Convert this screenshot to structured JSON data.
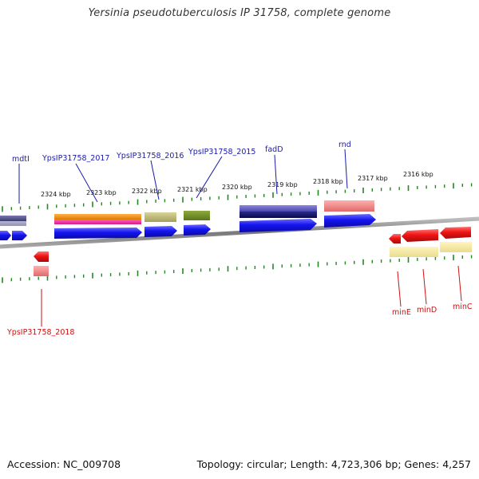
{
  "title": "Yersinia pseudotuberculosis IP 31758, complete genome",
  "footer": {
    "accession": "Accession: NC_009708",
    "summary": "Topology: circular; Length: 4,723,306 bp; Genes: 4,257"
  },
  "ruler": {
    "ticks": [
      "2324 kbp",
      "2323 kbp",
      "2322 kbp",
      "2321 kbp",
      "2320 kbp",
      "2319 kbp",
      "2318 kbp",
      "2317 kbp",
      "2316 kbp"
    ]
  },
  "genes": {
    "mdtI": "mdtI",
    "ypsIP31758_2017": "YpsIP31758_2017",
    "ypsIP31758_2016": "YpsIP31758_2016",
    "ypsIP31758_2015": "YpsIP31758_2015",
    "fadD": "fadD",
    "rnd": "rnd",
    "ypsIP31758_2018": "YpsIP31758_2018",
    "minE": "minE",
    "minD": "minD",
    "minC": "minC"
  },
  "colors": {
    "forward_cds": "#1010ee",
    "reverse_cds": "#ee1010",
    "forward_label": "#1a1aaa",
    "reverse_label": "#cc1111",
    "tick_green": "#228822",
    "backbone": "#888888"
  }
}
